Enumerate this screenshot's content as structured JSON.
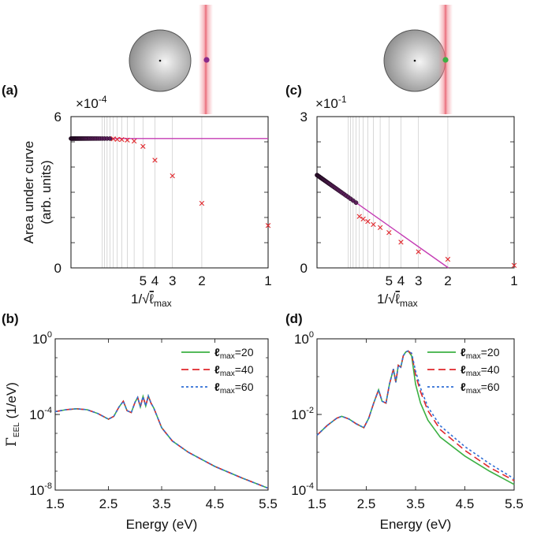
{
  "panels": {
    "a": {
      "letter": "(a)",
      "multiplier_base": "×10",
      "multiplier_exp": "-4",
      "y_ticks": [
        "6",
        "0"
      ]
    },
    "c": {
      "letter": "(c)",
      "multiplier_base": "×10",
      "multiplier_exp": "-1",
      "y_ticks": [
        "3",
        "0"
      ]
    },
    "b": {
      "letter": "(b)"
    },
    "d": {
      "letter": "(d)"
    }
  },
  "top_ylabel_line1": "Area under curve",
  "top_ylabel_line2": "(arb. units)",
  "top_xlabel_prefix": "1/√",
  "top_xlabel_l": "ℓ",
  "top_xlabel_sub": "max",
  "bottom_xlabel": "Energy (eV)",
  "bottom_ylabel_main": "Γ",
  "bottom_ylabel_sub": "EEL",
  "bottom_ylabel_unit": " (1/eV)",
  "legend_l": "ℓ",
  "legend_sub": "max",
  "colors": {
    "green": "#3cb043",
    "red": "#e0282d",
    "blue": "#2f6fd6",
    "magenta": "#c43cb4",
    "purple": "#8a2a8a",
    "grid": "#cfcfcf",
    "beam": "#f08a94"
  },
  "chart_data": [
    {
      "id": "a",
      "type": "scatter",
      "title": "",
      "xlabel": "1/√ℓmax",
      "ylabel": "Area under curve (arb. units)",
      "x_scale": "1/sqrt(lmax)",
      "xlim_lmax": [
        60,
        1
      ],
      "ylim": [
        0,
        6
      ],
      "y_multiplier": "×10^-4",
      "x_tick_labels": [
        "5",
        "4",
        "3",
        "2",
        "1"
      ],
      "x_tick_lmax": [
        5,
        4,
        3,
        2,
        1
      ],
      "gridlines_lmax": [
        14,
        13,
        12,
        11,
        10,
        9,
        8,
        7,
        6,
        5,
        4,
        3,
        2,
        1
      ],
      "fit_line": {
        "intercept": 5.13,
        "slope": 0
      },
      "crosses": {
        "lmax": [
          1,
          2,
          3,
          4,
          5,
          6,
          7,
          8,
          9,
          10
        ],
        "values": [
          1.68,
          2.56,
          3.65,
          4.27,
          4.82,
          5.03,
          5.07,
          5.09,
          5.1,
          5.12
        ]
      },
      "dots": {
        "lmax_from": 11,
        "lmax_to": 60,
        "value": 5.13
      },
      "grid": "vertical",
      "inset": {
        "dot_color": "#8a2a8a",
        "position": "surface"
      }
    },
    {
      "id": "c",
      "type": "scatter",
      "title": "",
      "xlabel": "1/√ℓmax",
      "ylabel": "",
      "x_scale": "1/sqrt(lmax)",
      "xlim_lmax": [
        60,
        1
      ],
      "ylim": [
        0,
        3
      ],
      "y_multiplier": "×10^-1",
      "x_tick_labels": [
        "5",
        "4",
        "3",
        "2",
        "1"
      ],
      "x_tick_lmax": [
        5,
        4,
        3,
        2,
        1
      ],
      "gridlines_lmax": [
        14,
        13,
        12,
        11,
        10,
        9,
        8,
        7,
        6,
        5,
        4,
        3,
        2,
        1
      ],
      "fit_line": {
        "intercept": 2.25,
        "slope": -3.17
      },
      "crosses": {
        "lmax": [
          1,
          2,
          3,
          4,
          5,
          6,
          7,
          8,
          9,
          10
        ],
        "values": [
          0.05,
          0.17,
          0.32,
          0.51,
          0.7,
          0.8,
          0.86,
          0.92,
          0.97,
          1.02
        ]
      },
      "dots": {
        "lmax_from": 11,
        "lmax_to": 60
      },
      "grid": "vertical",
      "inset": {
        "dot_color": "#3cb043",
        "position": "inside"
      }
    },
    {
      "id": "b",
      "type": "line",
      "title": "",
      "xlabel": "Energy (eV)",
      "ylabel": "ΓEEL (1/eV)",
      "xlim": [
        1.5,
        5.5
      ],
      "x_ticks": [
        1.5,
        2.5,
        3.5,
        4.5,
        5.5
      ],
      "y_log": true,
      "ylim_exp": [
        -8,
        0
      ],
      "y_ticks_exp": [
        0,
        -4,
        -8
      ],
      "legend_position": "top-right",
      "series": [
        {
          "name": "=20",
          "style": "solid",
          "color": "#3cb043",
          "x": [
            1.5,
            1.7,
            1.9,
            2.1,
            2.3,
            2.5,
            2.6,
            2.7,
            2.78,
            2.85,
            2.93,
            3.0,
            3.05,
            3.1,
            3.15,
            3.2,
            3.25,
            3.3,
            3.35,
            3.4,
            3.5,
            3.7,
            4.0,
            4.5,
            5.0,
            5.5
          ],
          "y_log10": [
            -3.85,
            -3.75,
            -3.7,
            -3.75,
            -3.95,
            -4.25,
            -4.1,
            -3.6,
            -3.3,
            -3.8,
            -3.9,
            -3.35,
            -3.1,
            -3.6,
            -3.05,
            -3.55,
            -3.02,
            -3.4,
            -3.65,
            -4.0,
            -4.7,
            -5.4,
            -6.0,
            -6.75,
            -7.35,
            -7.9
          ]
        },
        {
          "name": "=40",
          "style": "dashed",
          "color": "#e0282d",
          "x": [
            1.5,
            1.7,
            1.9,
            2.1,
            2.3,
            2.5,
            2.6,
            2.7,
            2.78,
            2.85,
            2.93,
            3.0,
            3.05,
            3.1,
            3.15,
            3.2,
            3.25,
            3.3,
            3.35,
            3.4,
            3.5,
            3.7,
            4.0,
            4.5,
            5.0,
            5.5
          ],
          "y_log10": [
            -3.85,
            -3.75,
            -3.7,
            -3.75,
            -3.95,
            -4.25,
            -4.1,
            -3.6,
            -3.3,
            -3.8,
            -3.9,
            -3.35,
            -3.1,
            -3.6,
            -3.05,
            -3.55,
            -3.02,
            -3.4,
            -3.65,
            -4.0,
            -4.7,
            -5.4,
            -6.0,
            -6.75,
            -7.35,
            -7.9
          ]
        },
        {
          "name": "=60",
          "style": "dotted",
          "color": "#2f6fd6",
          "x": [
            1.5,
            1.7,
            1.9,
            2.1,
            2.3,
            2.5,
            2.6,
            2.7,
            2.78,
            2.85,
            2.93,
            3.0,
            3.05,
            3.1,
            3.15,
            3.2,
            3.25,
            3.3,
            3.35,
            3.4,
            3.5,
            3.7,
            4.0,
            4.5,
            5.0,
            5.5
          ],
          "y_log10": [
            -3.85,
            -3.75,
            -3.7,
            -3.75,
            -3.95,
            -4.25,
            -4.1,
            -3.6,
            -3.3,
            -3.8,
            -3.9,
            -3.35,
            -3.1,
            -3.6,
            -3.05,
            -3.55,
            -3.02,
            -3.4,
            -3.65,
            -4.0,
            -4.7,
            -5.4,
            -6.0,
            -6.75,
            -7.35,
            -7.9
          ]
        }
      ]
    },
    {
      "id": "d",
      "type": "line",
      "title": "",
      "xlabel": "Energy (eV)",
      "ylabel": "",
      "xlim": [
        1.5,
        5.5
      ],
      "x_ticks": [
        1.5,
        2.5,
        3.5,
        4.5,
        5.5
      ],
      "y_log": true,
      "ylim_exp": [
        -4,
        0
      ],
      "y_ticks_exp": [
        0,
        -2,
        -4
      ],
      "legend_position": "top-right",
      "series": [
        {
          "name": "=20",
          "style": "solid",
          "color": "#3cb043",
          "x": [
            1.5,
            1.7,
            1.9,
            2.0,
            2.15,
            2.3,
            2.45,
            2.55,
            2.65,
            2.75,
            2.82,
            2.9,
            2.97,
            3.05,
            3.1,
            3.15,
            3.2,
            3.25,
            3.3,
            3.35,
            3.42,
            3.5,
            3.6,
            3.75,
            4.0,
            4.5,
            5.0,
            5.5
          ],
          "y_log10": [
            -2.55,
            -2.3,
            -2.1,
            -2.05,
            -2.12,
            -2.25,
            -2.35,
            -2.1,
            -1.7,
            -1.35,
            -1.65,
            -1.7,
            -1.2,
            -0.8,
            -1.15,
            -0.7,
            -0.75,
            -0.45,
            -0.35,
            -0.32,
            -0.45,
            -1.2,
            -1.7,
            -2.15,
            -2.6,
            -3.1,
            -3.5,
            -3.85
          ]
        },
        {
          "name": "=40",
          "style": "dashed",
          "color": "#e0282d",
          "x": [
            1.5,
            1.7,
            1.9,
            2.0,
            2.15,
            2.3,
            2.45,
            2.55,
            2.65,
            2.75,
            2.82,
            2.9,
            2.97,
            3.05,
            3.1,
            3.15,
            3.2,
            3.25,
            3.3,
            3.35,
            3.42,
            3.5,
            3.6,
            3.75,
            4.0,
            4.5,
            5.0,
            5.5
          ],
          "y_log10": [
            -2.55,
            -2.3,
            -2.1,
            -2.05,
            -2.12,
            -2.25,
            -2.35,
            -2.1,
            -1.7,
            -1.35,
            -1.65,
            -1.7,
            -1.2,
            -0.8,
            -1.15,
            -0.7,
            -0.75,
            -0.45,
            -0.35,
            -0.32,
            -0.4,
            -0.95,
            -1.4,
            -1.9,
            -2.4,
            -2.95,
            -3.4,
            -3.75
          ]
        },
        {
          "name": "=60",
          "style": "dotted",
          "color": "#2f6fd6",
          "x": [
            1.5,
            1.7,
            1.9,
            2.0,
            2.15,
            2.3,
            2.45,
            2.55,
            2.65,
            2.75,
            2.82,
            2.9,
            2.97,
            3.05,
            3.1,
            3.15,
            3.2,
            3.25,
            3.3,
            3.35,
            3.42,
            3.5,
            3.6,
            3.75,
            4.0,
            4.5,
            5.0,
            5.5
          ],
          "y_log10": [
            -2.55,
            -2.3,
            -2.1,
            -2.05,
            -2.12,
            -2.25,
            -2.35,
            -2.1,
            -1.7,
            -1.35,
            -1.65,
            -1.7,
            -1.2,
            -0.8,
            -1.15,
            -0.7,
            -0.75,
            -0.45,
            -0.35,
            -0.32,
            -0.38,
            -0.85,
            -1.3,
            -1.8,
            -2.3,
            -2.85,
            -3.3,
            -3.7
          ]
        }
      ]
    }
  ]
}
